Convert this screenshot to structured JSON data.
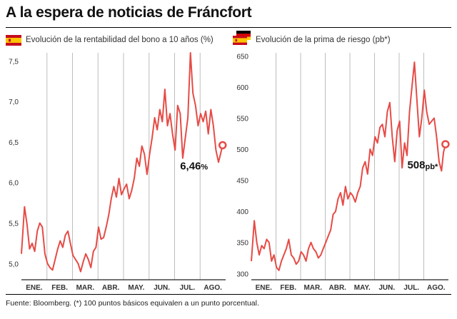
{
  "title": "A la espera de noticias de Fráncfort",
  "footer": "Fuente: Bloomberg. (*) 100 puntos básicos equivalen a un punto porcentual.",
  "colors": {
    "line": "#e64b46",
    "grid": "#bdbdbd",
    "spain_red": "#c60b1e",
    "spain_yellow": "#ffc400",
    "german_black": "#000000",
    "german_red": "#dd0000",
    "german_gold": "#ffce00"
  },
  "flags": {
    "left": "spain-flag-icon",
    "right_back": "germany-flag-icon",
    "right_front": "spain-flag-icon"
  },
  "chart_data": [
    {
      "type": "line",
      "title": "Evolución de la rentabilidad del bono a 10 años (%)",
      "categories": [
        "ENE.",
        "FEB.",
        "MAR.",
        "ABR.",
        "MAY.",
        "JUN.",
        "JUL.",
        "AGO."
      ],
      "ylim": [
        4.8,
        7.6
      ],
      "yticks": [
        5.0,
        5.5,
        6.0,
        6.5,
        7.0,
        7.5
      ],
      "ytick_labels": [
        "5,0",
        "5,5",
        "6,0",
        "6,5",
        "7,0",
        "7,5"
      ],
      "grid": true,
      "last_label": "6,46",
      "last_unit": "%",
      "series": [
        {
          "x": [
            0.0,
            0.12,
            0.22,
            0.32,
            0.42,
            0.52,
            0.62,
            0.72,
            0.82,
            0.92,
            1.02,
            1.12,
            1.22,
            1.32,
            1.42,
            1.52,
            1.62,
            1.72,
            1.82,
            1.92,
            2.02,
            2.12,
            2.22,
            2.32,
            2.42,
            2.52,
            2.62,
            2.72,
            2.82,
            2.92,
            3.02,
            3.12,
            3.22,
            3.32,
            3.42,
            3.52,
            3.62,
            3.72,
            3.82,
            3.92,
            4.02,
            4.12,
            4.22,
            4.32,
            4.42,
            4.52,
            4.62,
            4.72,
            4.82,
            4.92,
            5.02,
            5.12,
            5.22,
            5.32,
            5.42,
            5.52,
            5.62,
            5.72,
            5.82,
            5.92,
            6.02,
            6.12,
            6.22,
            6.32,
            6.42,
            6.52,
            6.62,
            6.72,
            6.82,
            6.92,
            7.02,
            7.12,
            7.22,
            7.32,
            7.42,
            7.52,
            7.62,
            7.72,
            7.8,
            7.88
          ],
          "y": [
            5.12,
            5.7,
            5.48,
            5.18,
            5.25,
            5.15,
            5.4,
            5.5,
            5.45,
            5.12,
            5.0,
            4.95,
            4.92,
            5.05,
            5.18,
            5.28,
            5.2,
            5.35,
            5.4,
            5.25,
            5.1,
            5.05,
            5.0,
            4.9,
            5.02,
            5.12,
            5.05,
            4.95,
            5.15,
            5.2,
            5.45,
            5.3,
            5.32,
            5.45,
            5.6,
            5.8,
            5.95,
            5.82,
            6.05,
            5.85,
            5.92,
            5.98,
            5.8,
            5.9,
            6.05,
            6.3,
            6.2,
            6.45,
            6.35,
            6.1,
            6.35,
            6.55,
            6.8,
            6.65,
            6.9,
            6.75,
            7.15,
            6.7,
            6.85,
            6.6,
            6.4,
            6.95,
            6.85,
            6.3,
            6.55,
            6.8,
            7.6,
            7.1,
            6.95,
            6.7,
            6.85,
            6.75,
            6.88,
            6.6,
            6.9,
            6.7,
            6.4,
            6.25,
            6.35,
            6.46
          ]
        }
      ]
    },
    {
      "type": "line",
      "title": "Evolución de la prima de riesgo (pb*)",
      "categories": [
        "ENE.",
        "FEB.",
        "MAR.",
        "ABR.",
        "MAY.",
        "JUN.",
        "JUL.",
        "AGO."
      ],
      "ylim": [
        290,
        655
      ],
      "yticks": [
        300,
        350,
        400,
        450,
        500,
        550,
        600,
        650
      ],
      "ytick_labels": [
        "300",
        "350",
        "400",
        "450",
        "500",
        "550",
        "600",
        "650"
      ],
      "grid": true,
      "last_label": "508",
      "last_unit": "pb*",
      "series": [
        {
          "x": [
            0.0,
            0.12,
            0.22,
            0.32,
            0.42,
            0.52,
            0.62,
            0.72,
            0.82,
            0.92,
            1.02,
            1.12,
            1.22,
            1.32,
            1.42,
            1.52,
            1.62,
            1.72,
            1.82,
            1.92,
            2.02,
            2.12,
            2.22,
            2.32,
            2.42,
            2.52,
            2.62,
            2.72,
            2.82,
            2.92,
            3.02,
            3.12,
            3.22,
            3.32,
            3.42,
            3.52,
            3.62,
            3.72,
            3.82,
            3.92,
            4.02,
            4.12,
            4.22,
            4.32,
            4.42,
            4.52,
            4.62,
            4.72,
            4.82,
            4.92,
            5.02,
            5.12,
            5.22,
            5.32,
            5.42,
            5.52,
            5.62,
            5.72,
            5.82,
            5.92,
            6.02,
            6.12,
            6.22,
            6.32,
            6.42,
            6.52,
            6.62,
            6.72,
            6.82,
            6.92,
            7.02,
            7.12,
            7.22,
            7.32,
            7.42,
            7.52,
            7.62,
            7.72,
            7.8,
            7.88
          ],
          "y": [
            320,
            385,
            350,
            330,
            345,
            340,
            355,
            350,
            320,
            330,
            310,
            305,
            320,
            330,
            340,
            355,
            330,
            325,
            315,
            320,
            335,
            330,
            320,
            340,
            350,
            340,
            335,
            325,
            330,
            340,
            350,
            360,
            370,
            395,
            400,
            420,
            430,
            410,
            440,
            420,
            430,
            425,
            415,
            430,
            440,
            470,
            480,
            460,
            500,
            490,
            520,
            510,
            535,
            540,
            520,
            560,
            575,
            520,
            480,
            530,
            545,
            470,
            510,
            490,
            560,
            600,
            640,
            580,
            520,
            550,
            595,
            560,
            540,
            545,
            550,
            520,
            480,
            465,
            495,
            508
          ]
        }
      ]
    }
  ]
}
